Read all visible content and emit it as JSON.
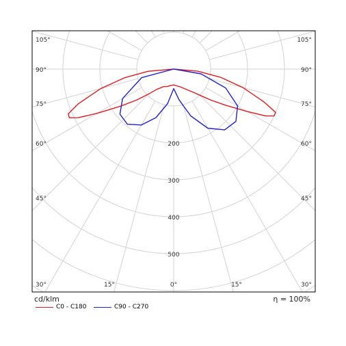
{
  "colors": {
    "grid": "#d9d9d9",
    "frame": "#000000",
    "c0": "#e31a1c",
    "c90": "#1f1fd6"
  },
  "footer": {
    "unit": "cd/klm",
    "efficiency": "η = 100%"
  },
  "chart_data": {
    "type": "polar",
    "title": "",
    "unit": "cd/klm",
    "efficiency": "η = 100%",
    "radial_axis": {
      "max": 700,
      "ring_values": [
        100,
        200,
        300,
        400,
        500,
        600,
        700
      ],
      "ring_labels": [
        {
          "value": 200,
          "text": "200"
        },
        {
          "value": 300,
          "text": "300"
        },
        {
          "value": 400,
          "text": "400"
        },
        {
          "value": 500,
          "text": "500"
        }
      ]
    },
    "angular_axis": {
      "spoke_step_deg": 15,
      "labels_left": [
        "105°",
        "90°",
        "75°",
        "60°",
        "45°",
        "30°"
      ],
      "labels_right": [
        "105°",
        "90°",
        "75°",
        "60°",
        "45°",
        "30°"
      ],
      "labels_bottom": [
        "15°",
        "0°",
        "15°"
      ]
    },
    "grid": true,
    "legend_position": "bottom-left",
    "series": [
      {
        "name": "C0 - C180",
        "color": "#e31a1c",
        "points": [
          [
            -90,
            0
          ],
          [
            -85,
            70
          ],
          [
            -80,
            135
          ],
          [
            -75,
            205
          ],
          [
            -70,
            275
          ],
          [
            -67,
            310
          ],
          [
            -65,
            312
          ],
          [
            -63,
            290
          ],
          [
            -60,
            240
          ],
          [
            -55,
            175
          ],
          [
            -50,
            130
          ],
          [
            -45,
            95
          ],
          [
            -40,
            72
          ],
          [
            -30,
            55
          ],
          [
            -20,
            50
          ],
          [
            -10,
            45
          ],
          [
            0,
            43
          ],
          [
            10,
            46
          ],
          [
            20,
            51
          ],
          [
            30,
            62
          ],
          [
            40,
            82
          ],
          [
            45,
            100
          ],
          [
            50,
            130
          ],
          [
            55,
            170
          ],
          [
            60,
            230
          ],
          [
            63,
            280
          ],
          [
            65,
            300
          ],
          [
            67,
            300
          ],
          [
            70,
            260
          ],
          [
            75,
            195
          ],
          [
            80,
            130
          ],
          [
            85,
            65
          ],
          [
            90,
            0
          ]
        ]
      },
      {
        "name": "C90 - C270",
        "color": "#1f1fd6",
        "points": [
          [
            -90,
            0
          ],
          [
            -75,
            90
          ],
          [
            -60,
            160
          ],
          [
            -50,
            190
          ],
          [
            -40,
            195
          ],
          [
            -30,
            175
          ],
          [
            -20,
            140
          ],
          [
            -10,
            95
          ],
          [
            0,
            53
          ],
          [
            10,
            85
          ],
          [
            20,
            135
          ],
          [
            30,
            185
          ],
          [
            40,
            215
          ],
          [
            50,
            220
          ],
          [
            60,
            200
          ],
          [
            70,
            150
          ],
          [
            80,
            75
          ],
          [
            90,
            0
          ]
        ]
      }
    ]
  }
}
